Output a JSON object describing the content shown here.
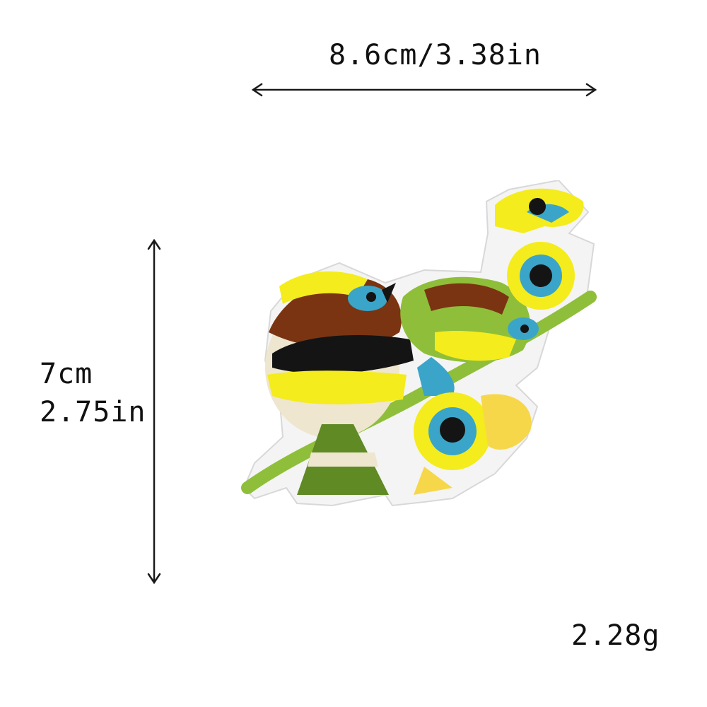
{
  "dimensions": {
    "width_label": "8.6cm/3.38in",
    "height_label_cm": "7cm",
    "height_label_in": "2.75in",
    "weight_label": "2.28g"
  },
  "product": {
    "image_icon": "embroidered-bird-patch-icon",
    "colors": {
      "yellow": "#f4ec1c",
      "green": "#5f8a24",
      "brown": "#7a3412",
      "black": "#141414",
      "blue": "#3aa5c9",
      "cream": "#eee6cf"
    }
  }
}
